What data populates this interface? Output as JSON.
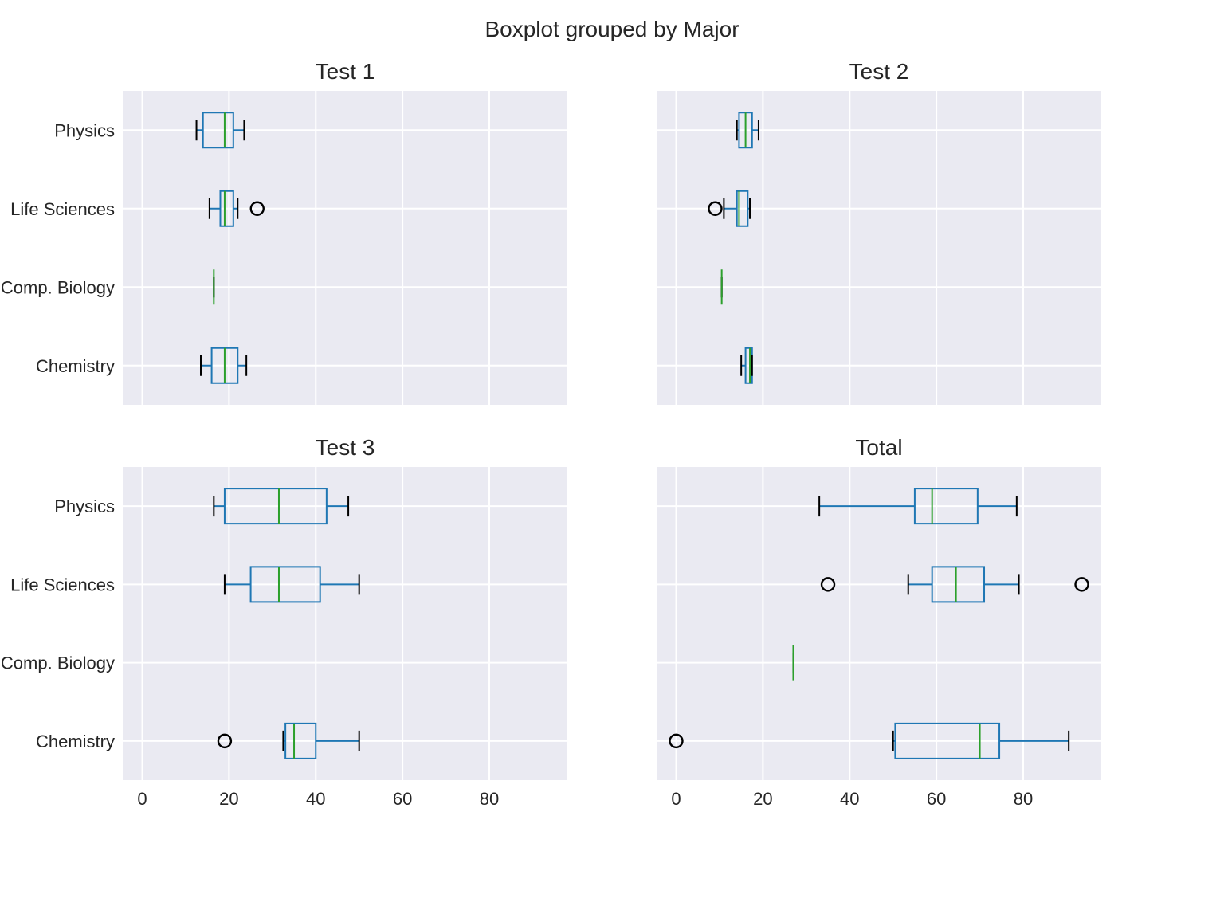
{
  "chart_data": {
    "type": "boxplot",
    "suptitle": "Boxplot grouped by Major",
    "categories": [
      "Physics",
      "Life Sciences",
      "Comp. Biology",
      "Chemistry"
    ],
    "xticks": [
      0,
      20,
      40,
      60,
      80
    ],
    "xlim": [
      -4.5,
      98
    ],
    "grid": true,
    "style": {
      "box_color": "#1f77b4",
      "median_color": "#2ca02c",
      "cap_color": "#000000",
      "flier_color": "#000000",
      "background": "#eaeaf2",
      "grid_color": "#ffffff"
    },
    "panels": [
      {
        "title": "Test 1",
        "boxes": [
          {
            "category": "Physics",
            "whislo": 12.5,
            "q1": 14,
            "med": 19,
            "q3": 21,
            "whishi": 23.5,
            "fliers": []
          },
          {
            "category": "Life Sciences",
            "whislo": 15.5,
            "q1": 18,
            "med": 19,
            "q3": 21,
            "whishi": 22,
            "fliers": [
              26.5
            ]
          },
          {
            "category": "Comp. Biology",
            "whislo": 16.5,
            "q1": 16.5,
            "med": 16.5,
            "q3": 16.5,
            "whishi": 16.5,
            "fliers": []
          },
          {
            "category": "Chemistry",
            "whislo": 13.5,
            "q1": 16,
            "med": 19,
            "q3": 22,
            "whishi": 24,
            "fliers": []
          }
        ]
      },
      {
        "title": "Test 2",
        "boxes": [
          {
            "category": "Physics",
            "whislo": 14,
            "q1": 14.5,
            "med": 16,
            "q3": 17.5,
            "whishi": 19,
            "fliers": []
          },
          {
            "category": "Life Sciences",
            "whislo": 11,
            "q1": 14,
            "med": 14.5,
            "q3": 16.5,
            "whishi": 17,
            "fliers": [
              9
            ]
          },
          {
            "category": "Comp. Biology",
            "whislo": 10.5,
            "q1": 10.5,
            "med": 10.5,
            "q3": 10.5,
            "whishi": 10.5,
            "fliers": []
          },
          {
            "category": "Chemistry",
            "whislo": 15,
            "q1": 16,
            "med": 17,
            "q3": 17.5,
            "whishi": 17.5,
            "fliers": []
          }
        ]
      },
      {
        "title": "Test 3",
        "boxes": [
          {
            "category": "Physics",
            "whislo": 16.5,
            "q1": 19,
            "med": 31.5,
            "q3": 42.5,
            "whishi": 47.5,
            "fliers": []
          },
          {
            "category": "Life Sciences",
            "whislo": 19,
            "q1": 25,
            "med": 31.5,
            "q3": 41,
            "whishi": 50,
            "fliers": []
          },
          {
            "category": "Comp. Biology",
            "whislo": null,
            "q1": null,
            "med": null,
            "q3": null,
            "whishi": null,
            "fliers": []
          },
          {
            "category": "Chemistry",
            "whislo": 32.5,
            "q1": 33,
            "med": 35,
            "q3": 40,
            "whishi": 50,
            "fliers": [
              19
            ]
          }
        ]
      },
      {
        "title": "Total",
        "boxes": [
          {
            "category": "Physics",
            "whislo": 33,
            "q1": 55,
            "med": 59,
            "q3": 69.5,
            "whishi": 78.5,
            "fliers": []
          },
          {
            "category": "Life Sciences",
            "whislo": 53.5,
            "q1": 59,
            "med": 64.5,
            "q3": 71,
            "whishi": 79,
            "fliers": [
              35,
              93.5
            ]
          },
          {
            "category": "Comp. Biology",
            "whislo": 27,
            "q1": 27,
            "med": 27,
            "q3": 27,
            "whishi": 27,
            "fliers": []
          },
          {
            "category": "Chemistry",
            "whislo": 50,
            "q1": 50.5,
            "med": 70,
            "q3": 74.5,
            "whishi": 90.5,
            "fliers": [
              0
            ]
          }
        ]
      }
    ]
  }
}
